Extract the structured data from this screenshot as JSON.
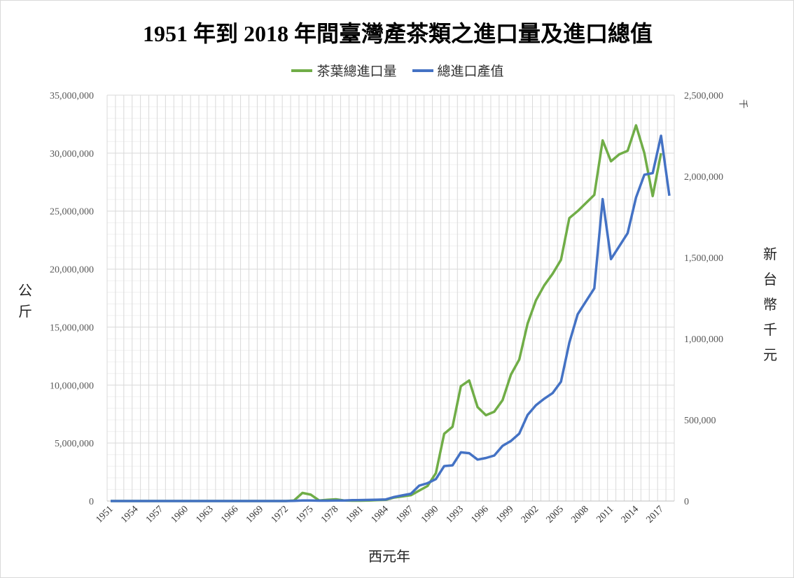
{
  "title": "1951 年到 2018 年間臺灣產茶類之進口量及進口總值",
  "legend": [
    {
      "name": "茶葉總進口量",
      "color": "#70ad47"
    },
    {
      "name": "總進口產值",
      "color": "#4472c4"
    }
  ],
  "left_axis_label": "公斤",
  "right_axis_label": "新台幣千元",
  "right_unit_label": "千",
  "x_label": "西元年",
  "chart_data": {
    "type": "line",
    "title": "1951 年到 2018 年間臺灣產茶類之進口量及進口總值",
    "xlabel": "西元年",
    "ylabel": "公斤",
    "y2label": "新台幣千元",
    "ylim": [
      0,
      35000000
    ],
    "y2lim": [
      0,
      2500000
    ],
    "yticks": [
      "0",
      "5,000,000",
      "10,000,000",
      "15,000,000",
      "20,000,000",
      "25,000,000",
      "30,000,000",
      "35,000,000"
    ],
    "y2ticks": [
      "0",
      "500,000",
      "1,000,000",
      "1,500,000",
      "2,000,000",
      "2,500,000"
    ],
    "x": [
      1951,
      1952,
      1953,
      1954,
      1955,
      1956,
      1957,
      1958,
      1959,
      1960,
      1961,
      1962,
      1963,
      1964,
      1965,
      1966,
      1967,
      1968,
      1969,
      1970,
      1971,
      1972,
      1973,
      1974,
      1975,
      1976,
      1977,
      1978,
      1979,
      1980,
      1981,
      1982,
      1983,
      1984,
      1985,
      1986,
      1987,
      1988,
      1989,
      1990,
      1991,
      1992,
      1993,
      1994,
      1995,
      1996,
      1997,
      1998,
      1999,
      2000,
      2001,
      2002,
      2003,
      2004,
      2005,
      2006,
      2007,
      2008,
      2009,
      2010,
      2011,
      2012,
      2013,
      2014,
      2015,
      2016,
      2017,
      2018
    ],
    "xticks": [
      "1951",
      "1954",
      "1957",
      "1960",
      "1963",
      "1966",
      "1969",
      "1972",
      "1975",
      "1978",
      "1981",
      "1984",
      "1987",
      "1990",
      "1993",
      "1996",
      "1999",
      "2002",
      "2005",
      "2008",
      "2011",
      "2014",
      "2017"
    ],
    "grid": true,
    "legend_position": "top",
    "series": [
      {
        "name": "茶葉總進口量",
        "axis": "left",
        "color": "#70ad47",
        "values": [
          0,
          0,
          0,
          0,
          0,
          0,
          0,
          0,
          0,
          0,
          0,
          0,
          0,
          0,
          0,
          0,
          0,
          0,
          0,
          0,
          0,
          0,
          50000,
          700000,
          550000,
          50000,
          100000,
          150000,
          50000,
          30000,
          30000,
          50000,
          80000,
          100000,
          300000,
          400000,
          500000,
          900000,
          1300000,
          2400000,
          5800000,
          6400000,
          9900000,
          10400000,
          8100000,
          7400000,
          7700000,
          8700000,
          10900000,
          12200000,
          15300000,
          17300000,
          18600000,
          19600000,
          20800000,
          24400000,
          25000000,
          25700000,
          26400000,
          31100000,
          29300000,
          29900000,
          30200000,
          32400000,
          30000000,
          26300000,
          30000000,
          null
        ]
      },
      {
        "name": "總進口產值",
        "axis": "right",
        "color": "#4472c4",
        "values": [
          0,
          0,
          0,
          0,
          0,
          0,
          0,
          0,
          0,
          0,
          0,
          0,
          0,
          0,
          0,
          0,
          0,
          0,
          0,
          0,
          0,
          0,
          1000,
          3000,
          3000,
          2000,
          2000,
          3000,
          3000,
          5000,
          6000,
          7000,
          8000,
          10000,
          25000,
          35000,
          45000,
          95000,
          110000,
          135000,
          215000,
          220000,
          300000,
          295000,
          255000,
          265000,
          280000,
          340000,
          370000,
          415000,
          530000,
          590000,
          630000,
          665000,
          735000,
          975000,
          1150000,
          1230000,
          1310000,
          1860000,
          1490000,
          1570000,
          1650000,
          1870000,
          2010000,
          2020000,
          2250000,
          1880000
        ]
      }
    ]
  }
}
